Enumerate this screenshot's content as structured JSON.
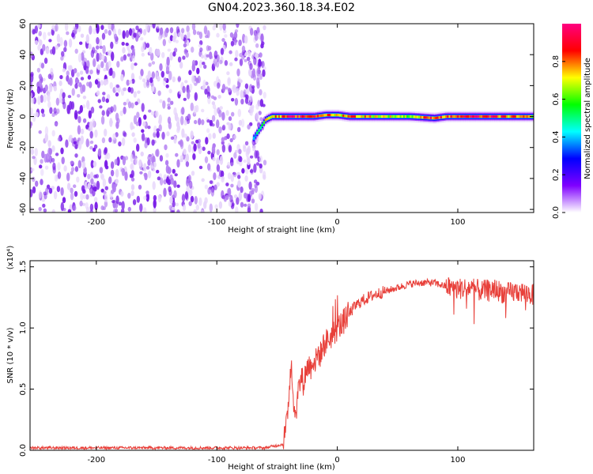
{
  "title": "GN04.2023.360.18.34.E02",
  "chart_data": [
    {
      "type": "heatmap",
      "xlabel": "Height of straight line (km)",
      "ylabel": "Frequency (Hz)",
      "xlim": [
        -255,
        163
      ],
      "ylim": [
        -62,
        60
      ],
      "xticks": [
        -200,
        -100,
        0,
        100
      ],
      "yticks": [
        -60,
        -40,
        -20,
        0,
        20,
        40,
        60
      ],
      "colorbar": {
        "label": "Normalized spectral amplitude",
        "range": [
          0,
          1
        ],
        "ticks": [
          "0.0",
          "0.2",
          "0.4",
          "0.6",
          "0.8"
        ],
        "colors": [
          "#ffffff",
          "#7f00ff",
          "#0000ff",
          "#00ffff",
          "#00ff00",
          "#ffff00",
          "#ff0000",
          "#ff0080"
        ]
      },
      "noise_region": {
        "x_from": -255,
        "x_to": -66,
        "amplitude_range": [
          0,
          0.12
        ]
      },
      "ridge": {
        "x": [
          -70,
          -65,
          -60,
          -55,
          -50,
          -40,
          -30,
          -20,
          -10,
          0,
          10,
          20,
          40,
          60,
          80,
          90,
          100,
          120,
          140,
          163
        ],
        "frequency": [
          -14,
          -8,
          -2,
          0,
          0,
          0,
          0,
          0,
          1,
          1,
          0,
          0,
          0,
          0,
          -1,
          0,
          0,
          0,
          0,
          0
        ],
        "amplitude": [
          0.35,
          0.55,
          0.7,
          0.8,
          0.75,
          0.9,
          0.85,
          0.9,
          0.8,
          0.7,
          0.85,
          0.75,
          0.7,
          0.65,
          0.9,
          0.8,
          0.85,
          0.9,
          0.8,
          0.7
        ]
      },
      "grid": false
    },
    {
      "type": "line",
      "xlabel": "Height of straight line (km)",
      "ylabel": "SNR (10 * v/v)",
      "yscale_label": "(x10⁴)",
      "xlim": [
        -255,
        163
      ],
      "ylim": [
        0,
        1.55
      ],
      "xticks": [
        -200,
        -100,
        0,
        100
      ],
      "yticks": [
        "0.0",
        "0.5",
        "1.0",
        "1.5"
      ],
      "line_color": "#e8403a",
      "series": [
        {
          "x": [
            -255,
            -200,
            -150,
            -100,
            -60,
            -45,
            -42,
            -40,
            -38,
            -36,
            -34,
            -32,
            -30,
            -28,
            -26,
            -24,
            -22,
            -20,
            -18,
            -16,
            -14,
            -12,
            -10,
            -8,
            -6,
            -4,
            -2,
            0,
            5,
            10,
            15,
            20,
            30,
            40,
            50,
            60,
            70,
            80,
            90,
            100,
            110,
            120,
            130,
            140,
            150,
            163
          ],
          "y": [
            0.02,
            0.02,
            0.02,
            0.02,
            0.02,
            0.05,
            0.2,
            0.5,
            0.75,
            0.3,
            0.35,
            0.5,
            0.6,
            0.55,
            0.65,
            0.7,
            0.68,
            0.75,
            0.72,
            0.8,
            0.78,
            0.85,
            0.88,
            0.9,
            0.92,
            0.95,
            0.97,
            1.0,
            1.05,
            1.12,
            1.18,
            1.22,
            1.27,
            1.3,
            1.33,
            1.36,
            1.37,
            1.37,
            1.34,
            1.32,
            1.33,
            1.3,
            1.32,
            1.28,
            1.3,
            1.27
          ]
        }
      ],
      "grid": false
    }
  ]
}
